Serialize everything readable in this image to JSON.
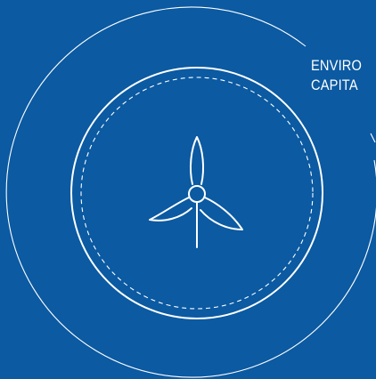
{
  "diagram": {
    "label_lines": [
      "ENVIRO",
      "CAPITA"
    ],
    "colors": {
      "background": "#0b5aa2",
      "stroke": "#ffffff"
    },
    "icon": "wind-turbine-icon"
  }
}
